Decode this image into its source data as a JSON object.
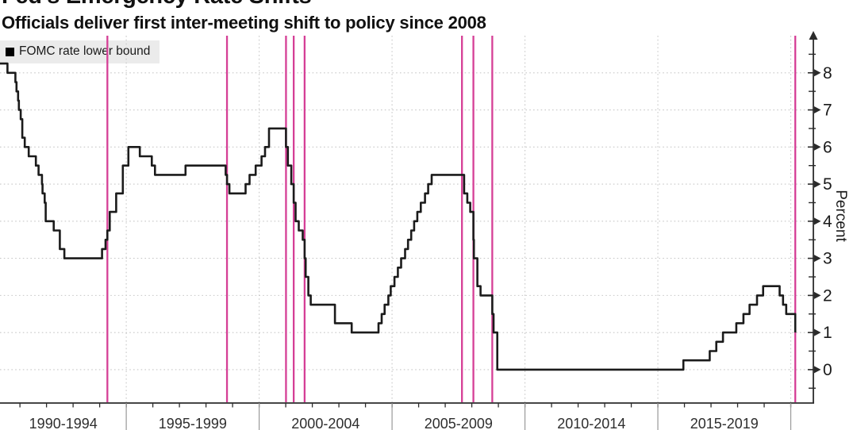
{
  "header": {
    "title": "Fed's Emergency Rate Shifts",
    "subtitle": "Officials deliver first inter-meeting shift to policy since 2008"
  },
  "legend": {
    "label": "FOMC rate lower bound",
    "swatch_color": "#000000"
  },
  "colors": {
    "background": "#ffffff",
    "series_line": "#1b1b1b",
    "event_line": "#d53f96",
    "grid": "#c8c8c8",
    "axis": "#2b2b2b",
    "separator": "#999999",
    "legend_bg": "#ebebeb",
    "text": "#111111"
  },
  "chart_data": {
    "type": "line",
    "style": "step-after",
    "title": "Fed's Emergency Rate Shifts",
    "subtitle": "Officials deliver first inter-meeting shift to policy since 2008",
    "ylabel": "Percent",
    "legend_entries": [
      "FOMC rate lower bound"
    ],
    "legend_position": "top-left",
    "grid": "dotted",
    "x_range_years": [
      1990.25,
      2020.85
    ],
    "ylim": [
      -0.9,
      9.0
    ],
    "y_ticks": [
      0,
      1,
      2,
      3,
      4,
      5,
      6,
      7,
      8
    ],
    "y_minor_step": 0.5,
    "x_separator_years": [
      1995,
      2000,
      2005,
      2010,
      2015,
      2020
    ],
    "x_period_labels": [
      {
        "label": "1990-1994",
        "center_year": 1992.63
      },
      {
        "label": "1995-1999",
        "center_year": 1997.5
      },
      {
        "label": "2000-2004",
        "center_year": 2002.5
      },
      {
        "label": "2005-2009",
        "center_year": 2007.5
      },
      {
        "label": "2010-2014",
        "center_year": 2012.5
      },
      {
        "label": "2015-2019",
        "center_year": 2017.5
      }
    ],
    "event_lines_years": [
      1994.29,
      1998.79,
      2001.01,
      2001.3,
      2001.71,
      2007.63,
      2008.06,
      2008.77,
      2020.17
    ],
    "series": [
      {
        "name": "FOMC rate lower bound",
        "points_year_value": [
          [
            1990.25,
            8.25
          ],
          [
            1990.53,
            8.0
          ],
          [
            1990.83,
            7.75
          ],
          [
            1990.87,
            7.5
          ],
          [
            1990.93,
            7.25
          ],
          [
            1990.96,
            7.0
          ],
          [
            1991.03,
            6.75
          ],
          [
            1991.09,
            6.25
          ],
          [
            1991.18,
            6.0
          ],
          [
            1991.33,
            5.75
          ],
          [
            1991.6,
            5.5
          ],
          [
            1991.7,
            5.25
          ],
          [
            1991.83,
            5.0
          ],
          [
            1991.85,
            4.75
          ],
          [
            1991.93,
            4.5
          ],
          [
            1991.97,
            4.0
          ],
          [
            1992.27,
            3.75
          ],
          [
            1992.5,
            3.25
          ],
          [
            1992.67,
            3.0
          ],
          [
            1994.09,
            3.25
          ],
          [
            1994.22,
            3.5
          ],
          [
            1994.29,
            3.75
          ],
          [
            1994.38,
            4.25
          ],
          [
            1994.62,
            4.75
          ],
          [
            1994.87,
            5.5
          ],
          [
            1995.08,
            6.0
          ],
          [
            1995.51,
            5.75
          ],
          [
            1995.96,
            5.5
          ],
          [
            1996.08,
            5.25
          ],
          [
            1997.23,
            5.5
          ],
          [
            1998.74,
            5.25
          ],
          [
            1998.79,
            5.0
          ],
          [
            1998.88,
            4.75
          ],
          [
            1999.49,
            5.0
          ],
          [
            1999.64,
            5.25
          ],
          [
            1999.87,
            5.5
          ],
          [
            2000.09,
            5.75
          ],
          [
            2000.22,
            6.0
          ],
          [
            2000.37,
            6.5
          ],
          [
            2001.01,
            6.0
          ],
          [
            2001.08,
            5.5
          ],
          [
            2001.21,
            5.0
          ],
          [
            2001.3,
            4.5
          ],
          [
            2001.37,
            4.0
          ],
          [
            2001.49,
            3.75
          ],
          [
            2001.64,
            3.5
          ],
          [
            2001.71,
            3.0
          ],
          [
            2001.75,
            2.5
          ],
          [
            2001.85,
            2.0
          ],
          [
            2001.94,
            1.75
          ],
          [
            2002.85,
            1.25
          ],
          [
            2003.48,
            1.0
          ],
          [
            2004.49,
            1.25
          ],
          [
            2004.61,
            1.5
          ],
          [
            2004.72,
            1.75
          ],
          [
            2004.86,
            2.0
          ],
          [
            2004.95,
            2.25
          ],
          [
            2005.09,
            2.5
          ],
          [
            2005.22,
            2.75
          ],
          [
            2005.34,
            3.0
          ],
          [
            2005.49,
            3.25
          ],
          [
            2005.6,
            3.5
          ],
          [
            2005.72,
            3.75
          ],
          [
            2005.83,
            4.0
          ],
          [
            2005.95,
            4.25
          ],
          [
            2006.08,
            4.5
          ],
          [
            2006.24,
            4.75
          ],
          [
            2006.36,
            5.0
          ],
          [
            2006.49,
            5.25
          ],
          [
            2007.71,
            4.75
          ],
          [
            2007.83,
            4.5
          ],
          [
            2007.94,
            4.25
          ],
          [
            2008.06,
            3.5
          ],
          [
            2008.08,
            3.0
          ],
          [
            2008.21,
            2.25
          ],
          [
            2008.33,
            2.0
          ],
          [
            2008.77,
            1.5
          ],
          [
            2008.82,
            1.0
          ],
          [
            2008.96,
            0.0
          ],
          [
            2015.96,
            0.25
          ],
          [
            2016.95,
            0.5
          ],
          [
            2017.2,
            0.75
          ],
          [
            2017.45,
            1.0
          ],
          [
            2017.95,
            1.25
          ],
          [
            2018.22,
            1.5
          ],
          [
            2018.45,
            1.75
          ],
          [
            2018.73,
            2.0
          ],
          [
            2018.96,
            2.25
          ],
          [
            2019.58,
            2.0
          ],
          [
            2019.71,
            1.75
          ],
          [
            2019.83,
            1.5
          ],
          [
            2020.17,
            1.0
          ]
        ]
      }
    ]
  }
}
